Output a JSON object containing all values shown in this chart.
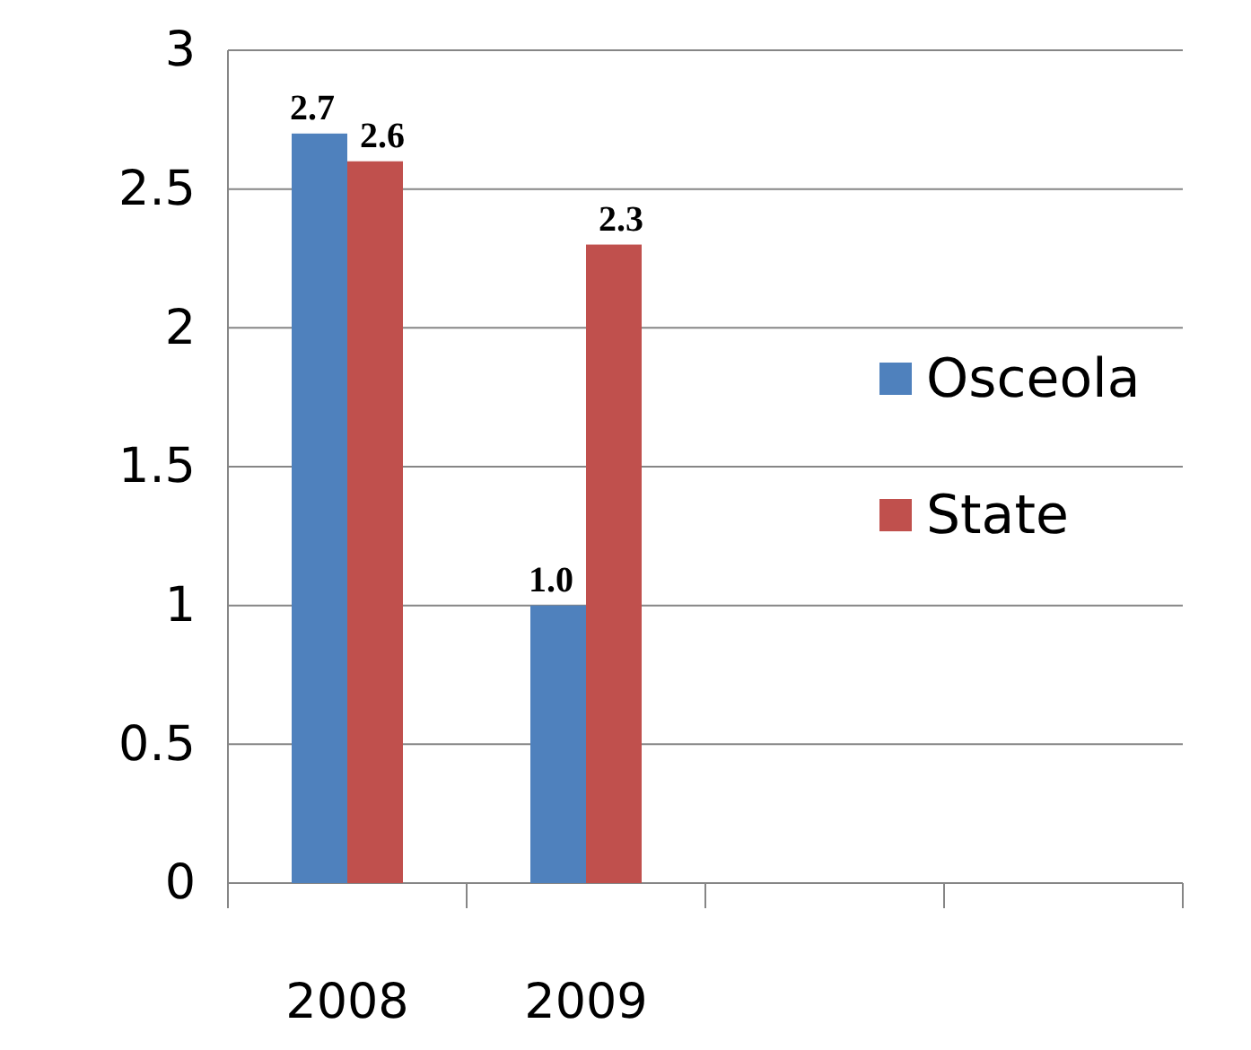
{
  "chart_data": {
    "type": "bar",
    "categories": [
      "2008",
      "2009",
      null,
      null
    ],
    "series": [
      {
        "name": "Osceola",
        "color": "#4f81bd",
        "values": [
          2.7,
          1.0,
          null,
          null
        ],
        "value_labels": [
          "2.7",
          "1.0",
          null,
          null
        ]
      },
      {
        "name": "State",
        "color": "#c0504d",
        "values": [
          2.6,
          2.3,
          null,
          null
        ],
        "value_labels": [
          "2.6",
          "2.3",
          null,
          null
        ]
      }
    ],
    "ylim": [
      0,
      3
    ],
    "yticks": [
      0,
      0.5,
      1,
      1.5,
      2,
      2.5,
      3
    ],
    "grid": "y",
    "legend": "right"
  }
}
